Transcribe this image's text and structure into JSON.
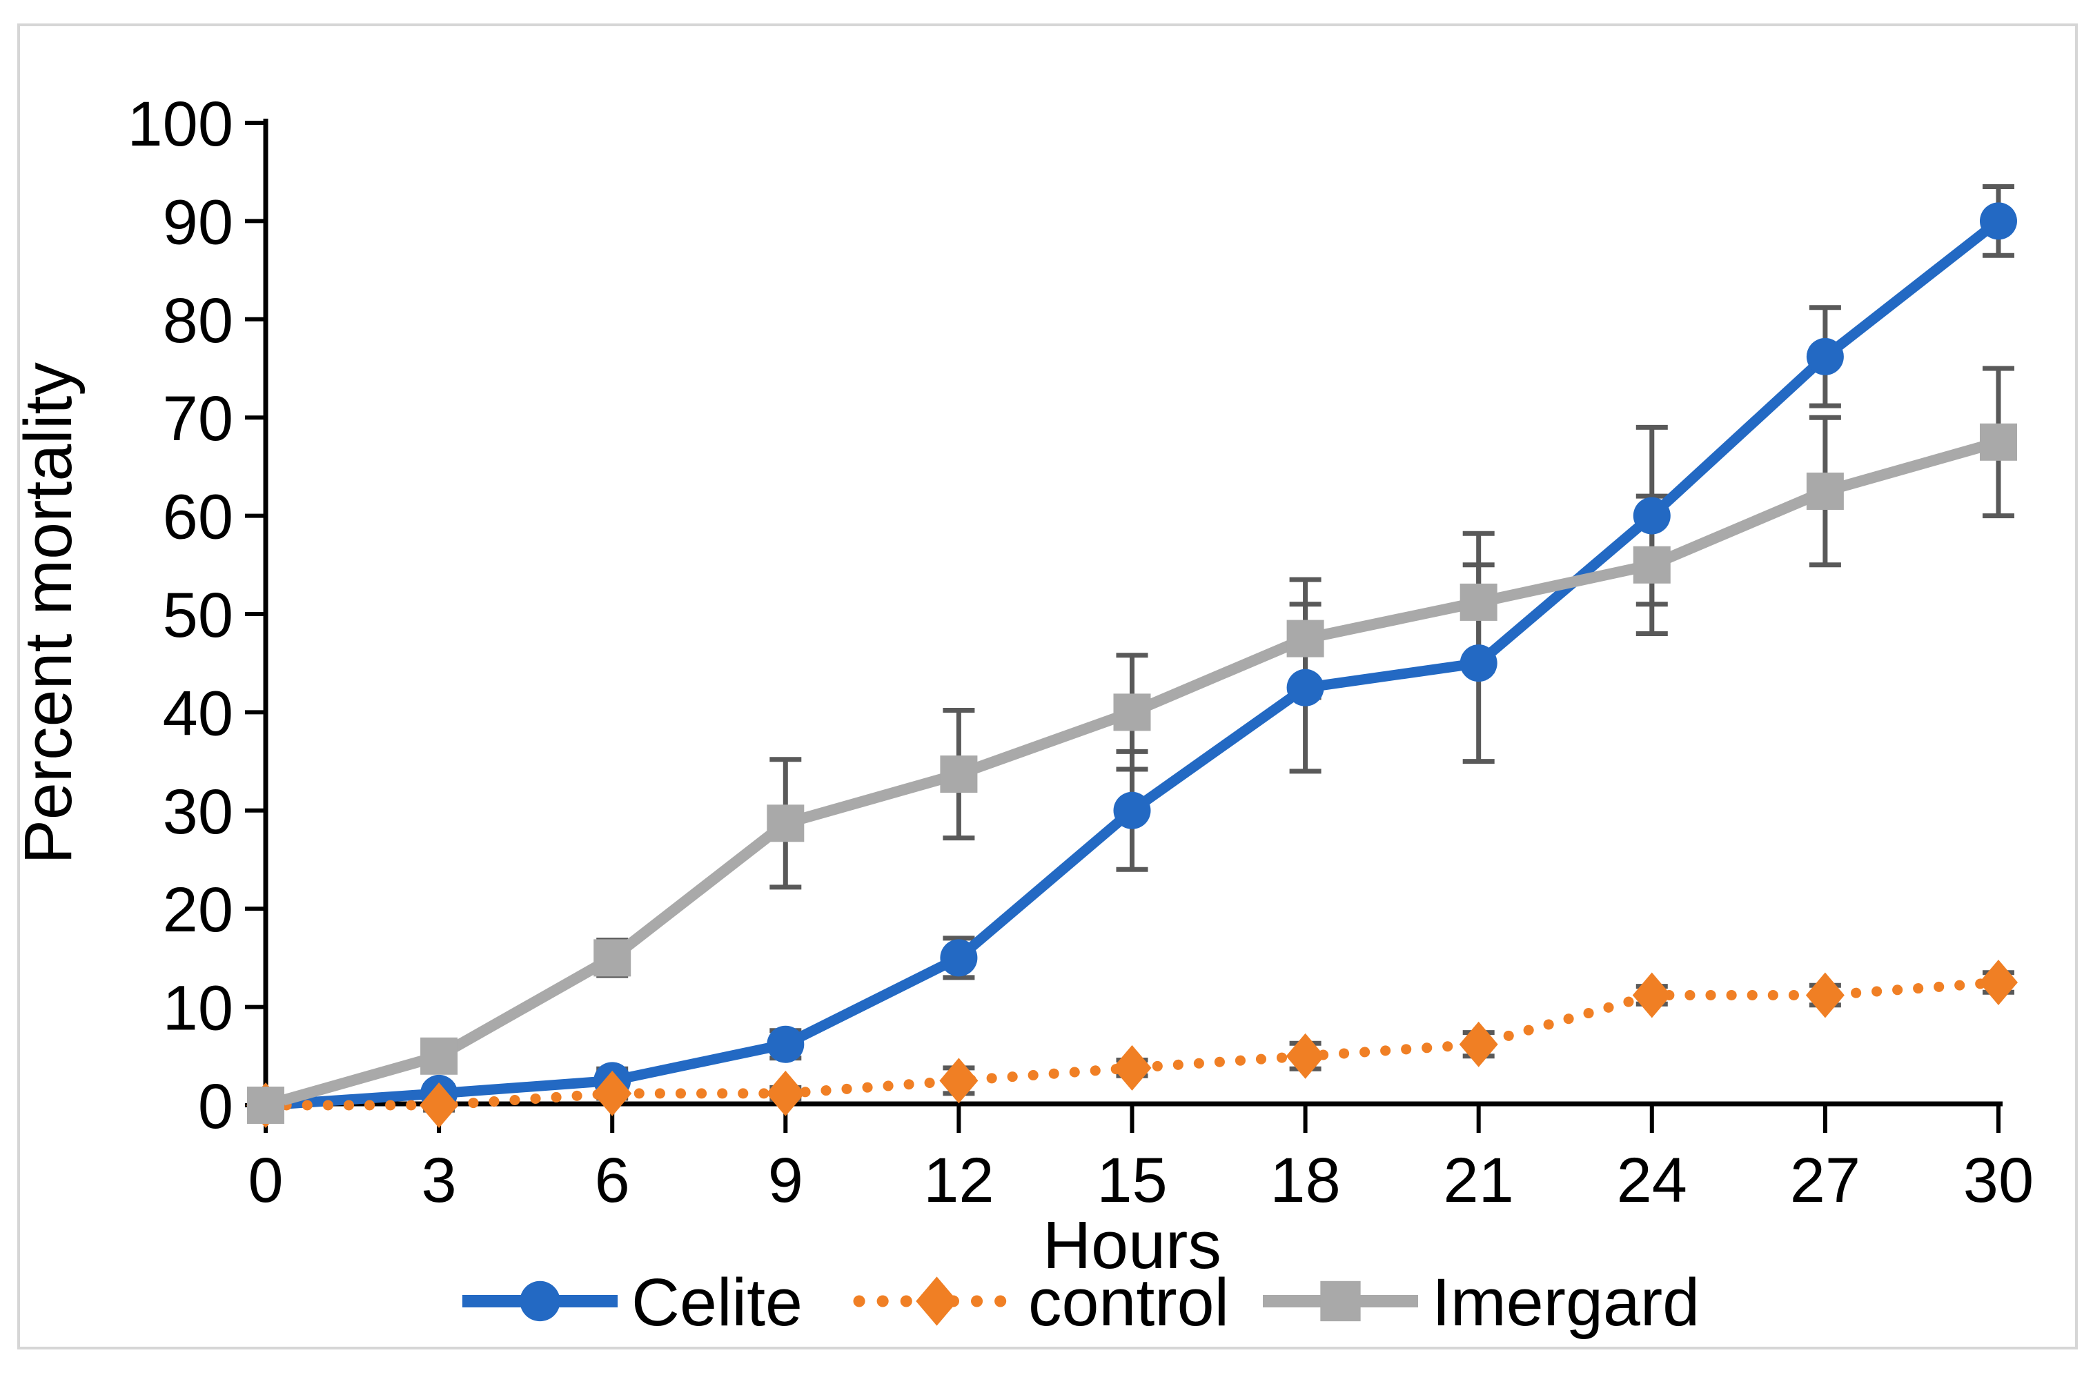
{
  "figure": {
    "background": "#FFFFFF",
    "border_color": "#D6D6D6",
    "text_color": "#000000",
    "axis_color": "#000000"
  },
  "chart_data": {
    "type": "line",
    "title": "",
    "xlabel": "Hours",
    "ylabel": "Percent mortality",
    "x": [
      0,
      3,
      6,
      9,
      12,
      15,
      18,
      21,
      24,
      27,
      30
    ],
    "ylim": [
      0,
      100
    ],
    "ytick_step": 10,
    "yticks": [
      0,
      10,
      20,
      30,
      40,
      50,
      60,
      70,
      80,
      90,
      100
    ],
    "grid": false,
    "legend_position": "bottom",
    "error_bar_color": "#595959",
    "series": [
      {
        "name": "Celite",
        "color": "#2369C3",
        "marker": "circle",
        "line_style": "solid",
        "values": [
          0,
          1.2,
          2.5,
          6.2,
          15,
          30,
          42.5,
          45,
          60,
          76.2,
          90
        ],
        "errors": [
          0.5,
          0.8,
          1.2,
          1.4,
          2,
          6,
          8.5,
          10,
          9,
          5,
          3.5
        ]
      },
      {
        "name": "control",
        "color": "#F07F24",
        "marker": "diamond",
        "line_style": "dotted",
        "values": [
          0,
          0,
          1.2,
          1.2,
          2.5,
          3.8,
          5,
          6.2,
          11.2,
          11.2,
          12.5
        ],
        "errors": [
          0.3,
          0.5,
          0.5,
          0.6,
          1.3,
          0.8,
          1.3,
          1.2,
          0.9,
          1,
          1
        ]
      },
      {
        "name": "Imergard",
        "color": "#A9A9A9",
        "marker": "square",
        "line_style": "solid",
        "values": [
          0,
          5,
          15,
          28.7,
          33.7,
          40,
          47.5,
          51.2,
          55,
          62.5,
          67.5
        ],
        "errors": [
          0.8,
          1.2,
          1.8,
          6.5,
          6.5,
          5.8,
          6,
          7,
          7,
          7.5,
          7.5
        ]
      }
    ]
  }
}
